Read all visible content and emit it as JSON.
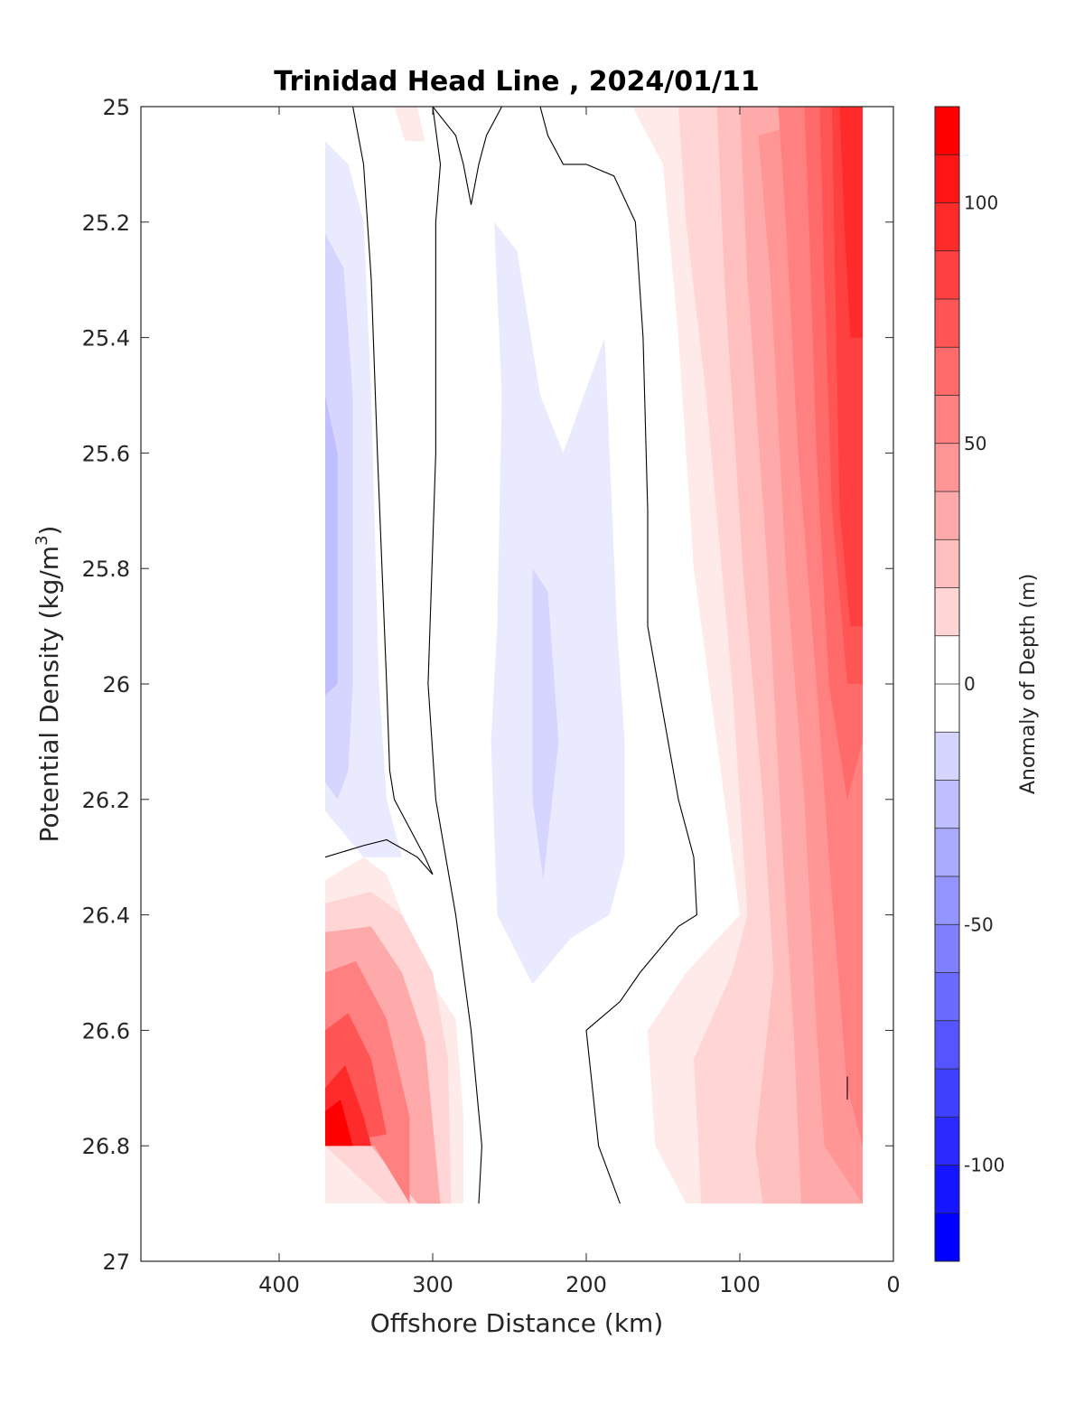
{
  "chart_data": {
    "type": "contour",
    "title": "Trinidad Head Line , 2024/01/11",
    "xlabel": "Offshore Distance (km)",
    "ylabel_main": "Potential Density (kg/m",
    "ylabel_sup": "3",
    "ylabel_end": ")",
    "xlim": [
      490,
      0
    ],
    "ylim": [
      25,
      27
    ],
    "y_reversed": true,
    "x_reversed": true,
    "xticks": [
      400,
      300,
      200,
      100,
      0
    ],
    "yticks": [
      25,
      25.2,
      25.4,
      25.6,
      25.8,
      26,
      26.2,
      26.4,
      26.6,
      26.8,
      27
    ],
    "xtick_labels": [
      "400",
      "300",
      "200",
      "100",
      "0"
    ],
    "ytick_labels": [
      "25",
      "25.2",
      "25.4",
      "25.6",
      "25.8",
      "26",
      "26.2",
      "26.4",
      "26.6",
      "26.8",
      "27"
    ],
    "colorbar": {
      "label": "Anomaly of Depth (m)",
      "range": [
        -120,
        120
      ],
      "step": 10,
      "ticks": [
        100,
        50,
        0,
        -50,
        -100
      ],
      "tick_labels": [
        "100",
        "50",
        "0",
        "-50",
        "-100"
      ],
      "colormap": "blue-white-red"
    },
    "data_extent": {
      "x_min": 20,
      "x_max": 370,
      "y_min": 25,
      "y_max": 26.9
    },
    "regions": [
      {
        "level": -10,
        "points": [
          [
            370,
            25.06
          ],
          [
            355,
            25.1
          ],
          [
            345,
            25.2
          ],
          [
            340,
            25.5
          ],
          [
            335,
            26
          ],
          [
            330,
            26.2
          ],
          [
            320,
            26.3
          ],
          [
            310,
            26.3
          ],
          [
            345,
            26.3
          ],
          [
            370,
            26.22
          ]
        ]
      },
      {
        "level": -20,
        "points": [
          [
            370,
            25.22
          ],
          [
            358,
            25.28
          ],
          [
            352,
            25.5
          ],
          [
            352,
            26
          ],
          [
            355,
            26.15
          ],
          [
            362,
            26.2
          ],
          [
            370,
            26.17
          ]
        ]
      },
      {
        "level": -30,
        "points": [
          [
            370,
            25.5
          ],
          [
            362,
            25.6
          ],
          [
            362,
            26.0
          ],
          [
            370,
            26.02
          ]
        ]
      },
      {
        "level": -10,
        "points": [
          [
            260,
            25.2
          ],
          [
            245,
            25.25
          ],
          [
            230,
            25.5
          ],
          [
            215,
            25.6
          ],
          [
            188,
            25.4
          ],
          [
            180,
            25.9
          ],
          [
            175,
            26.1
          ],
          [
            175,
            26.3
          ],
          [
            185,
            26.4
          ],
          [
            210,
            26.44
          ],
          [
            235,
            26.52
          ],
          [
            258,
            26.4
          ],
          [
            262,
            26.1
          ],
          [
            258,
            25.9
          ],
          [
            255,
            25.5
          ]
        ]
      },
      {
        "level": -20,
        "points": [
          [
            235,
            25.8
          ],
          [
            225,
            25.84
          ],
          [
            218,
            26.1
          ],
          [
            228,
            26.34
          ],
          [
            235,
            26.2
          ]
        ]
      },
      {
        "level": 10,
        "points": [
          [
            325,
            25
          ],
          [
            318,
            25.06
          ],
          [
            305,
            25.06
          ],
          [
            310,
            25
          ]
        ]
      },
      {
        "level": 10,
        "points": [
          [
            370,
            26.34
          ],
          [
            345,
            26.3
          ],
          [
            330,
            26.33
          ],
          [
            305,
            26.5
          ],
          [
            285,
            26.58
          ],
          [
            280,
            26.75
          ],
          [
            280,
            26.9
          ],
          [
            310,
            26.9
          ],
          [
            340,
            26.9
          ],
          [
            370,
            26.9
          ]
        ]
      },
      {
        "level": 20,
        "points": [
          [
            370,
            26.38
          ],
          [
            340,
            26.36
          ],
          [
            320,
            26.4
          ],
          [
            300,
            26.5
          ],
          [
            290,
            26.65
          ],
          [
            288,
            26.9
          ],
          [
            308,
            26.9
          ],
          [
            330,
            26.9
          ],
          [
            370,
            26.8
          ]
        ]
      },
      {
        "level": 40,
        "points": [
          [
            370,
            26.43
          ],
          [
            340,
            26.42
          ],
          [
            320,
            26.5
          ],
          [
            305,
            26.62
          ],
          [
            295,
            26.9
          ],
          [
            310,
            26.9
          ],
          [
            340,
            26.8
          ],
          [
            370,
            26.8
          ]
        ]
      },
      {
        "level": 60,
        "points": [
          [
            370,
            26.5
          ],
          [
            350,
            26.48
          ],
          [
            330,
            26.58
          ],
          [
            315,
            26.75
          ],
          [
            315,
            26.9
          ],
          [
            338,
            26.8
          ],
          [
            370,
            26.8
          ]
        ]
      },
      {
        "level": 80,
        "points": [
          [
            370,
            26.6
          ],
          [
            355,
            26.57
          ],
          [
            340,
            26.65
          ],
          [
            330,
            26.78
          ],
          [
            370,
            26.8
          ]
        ]
      },
      {
        "level": 100,
        "points": [
          [
            370,
            26.7
          ],
          [
            357,
            26.66
          ],
          [
            345,
            26.75
          ],
          [
            340,
            26.8
          ],
          [
            370,
            26.8
          ]
        ]
      },
      {
        "level": 120,
        "points": [
          [
            370,
            26.74
          ],
          [
            360,
            26.72
          ],
          [
            352,
            26.8
          ],
          [
            370,
            26.8
          ]
        ]
      },
      {
        "level": 10,
        "points": [
          [
            170,
            25
          ],
          [
            150,
            25.1
          ],
          [
            140,
            25.4
          ],
          [
            130,
            25.8
          ],
          [
            115,
            26.1
          ],
          [
            100,
            26.4
          ],
          [
            135,
            26.5
          ],
          [
            160,
            26.6
          ],
          [
            155,
            26.8
          ],
          [
            135,
            26.9
          ],
          [
            20,
            26.9
          ],
          [
            20,
            25
          ]
        ]
      },
      {
        "level": 20,
        "points": [
          [
            140,
            25
          ],
          [
            135,
            25.2
          ],
          [
            122,
            25.5
          ],
          [
            105,
            26.0
          ],
          [
            95,
            26.4
          ],
          [
            105,
            26.5
          ],
          [
            130,
            26.65
          ],
          [
            125,
            26.9
          ],
          [
            20,
            26.9
          ],
          [
            20,
            25
          ]
        ]
      },
      {
        "level": 30,
        "points": [
          [
            115,
            25
          ],
          [
            110,
            25.3
          ],
          [
            98,
            25.8
          ],
          [
            85,
            26.2
          ],
          [
            78,
            26.5
          ],
          [
            90,
            26.8
          ],
          [
            85,
            26.9
          ],
          [
            20,
            26.9
          ],
          [
            20,
            25
          ]
        ]
      },
      {
        "level": 40,
        "points": [
          [
            100,
            25
          ],
          [
            95,
            25.3
          ],
          [
            82,
            25.8
          ],
          [
            72,
            26.3
          ],
          [
            65,
            26.6
          ],
          [
            60,
            26.9
          ],
          [
            20,
            26.9
          ],
          [
            20,
            25
          ]
        ]
      },
      {
        "level": 50,
        "points": [
          [
            88,
            25.05
          ],
          [
            80,
            25.3
          ],
          [
            70,
            25.8
          ],
          [
            58,
            26.2
          ],
          [
            50,
            26.6
          ],
          [
            45,
            26.8
          ],
          [
            20,
            26.9
          ],
          [
            20,
            25
          ]
        ]
      },
      {
        "level": 60,
        "points": [
          [
            75,
            25
          ],
          [
            70,
            25.2
          ],
          [
            62,
            25.6
          ],
          [
            50,
            26.0
          ],
          [
            42,
            26.3
          ],
          [
            30,
            26.7
          ],
          [
            20,
            26.8
          ],
          [
            20,
            25
          ]
        ]
      },
      {
        "level": 70,
        "points": [
          [
            58,
            25
          ],
          [
            55,
            25.2
          ],
          [
            50,
            25.6
          ],
          [
            42,
            26.0
          ],
          [
            30,
            26.2
          ],
          [
            20,
            26.1
          ],
          [
            20,
            25
          ]
        ]
      },
      {
        "level": 80,
        "points": [
          [
            48,
            25
          ],
          [
            45,
            25.3
          ],
          [
            40,
            25.7
          ],
          [
            30,
            26.0
          ],
          [
            20,
            26.0
          ],
          [
            20,
            25
          ]
        ]
      },
      {
        "level": 90,
        "points": [
          [
            40,
            25
          ],
          [
            38,
            25.3
          ],
          [
            35,
            25.7
          ],
          [
            28,
            25.9
          ],
          [
            20,
            25.9
          ],
          [
            20,
            25
          ]
        ]
      },
      {
        "level": 100,
        "points": [
          [
            35,
            25
          ],
          [
            32,
            25.2
          ],
          [
            28,
            25.4
          ],
          [
            20,
            25.4
          ],
          [
            20,
            25
          ]
        ]
      }
    ],
    "contour_lines": [
      [
        [
          352,
          25
        ],
        [
          345,
          25.1
        ],
        [
          340,
          25.3
        ],
        [
          336,
          25.6
        ],
        [
          333,
          25.8
        ],
        [
          330,
          26.0
        ],
        [
          328,
          26.15
        ],
        [
          325,
          26.2
        ],
        [
          315,
          26.25
        ],
        [
          305,
          26.3
        ],
        [
          300,
          26.33
        ],
        [
          310,
          26.3
        ],
        [
          330,
          26.27
        ],
        [
          345,
          26.28
        ],
        [
          370,
          26.3
        ]
      ],
      [
        [
          300,
          25
        ],
        [
          295,
          25.1
        ],
        [
          298,
          25.2
        ],
        [
          298,
          25.6
        ],
        [
          303,
          26.0
        ],
        [
          298,
          26.2
        ],
        [
          285,
          26.4
        ],
        [
          275,
          26.6
        ],
        [
          268,
          26.8
        ],
        [
          270,
          26.9
        ]
      ],
      [
        [
          300,
          25
        ],
        [
          285,
          25.05
        ],
        [
          280,
          25.1
        ],
        [
          275,
          25.17
        ],
        [
          270,
          25.1
        ],
        [
          265,
          25.05
        ],
        [
          255,
          25
        ]
      ],
      [
        [
          230,
          25
        ],
        [
          225,
          25.05
        ],
        [
          215,
          25.1
        ],
        [
          200,
          25.1
        ],
        [
          182,
          25.12
        ],
        [
          168,
          25.2
        ],
        [
          163,
          25.4
        ],
        [
          160,
          25.7
        ],
        [
          160,
          25.9
        ],
        [
          150,
          26.05
        ],
        [
          140,
          26.2
        ],
        [
          130,
          26.3
        ],
        [
          128,
          26.4
        ],
        [
          140,
          26.42
        ],
        [
          165,
          26.5
        ],
        [
          178,
          26.55
        ],
        [
          200,
          26.6
        ],
        [
          192,
          26.8
        ],
        [
          178,
          26.9
        ]
      ],
      [
        [
          30,
          26.68
        ],
        [
          30,
          26.72
        ]
      ]
    ]
  }
}
